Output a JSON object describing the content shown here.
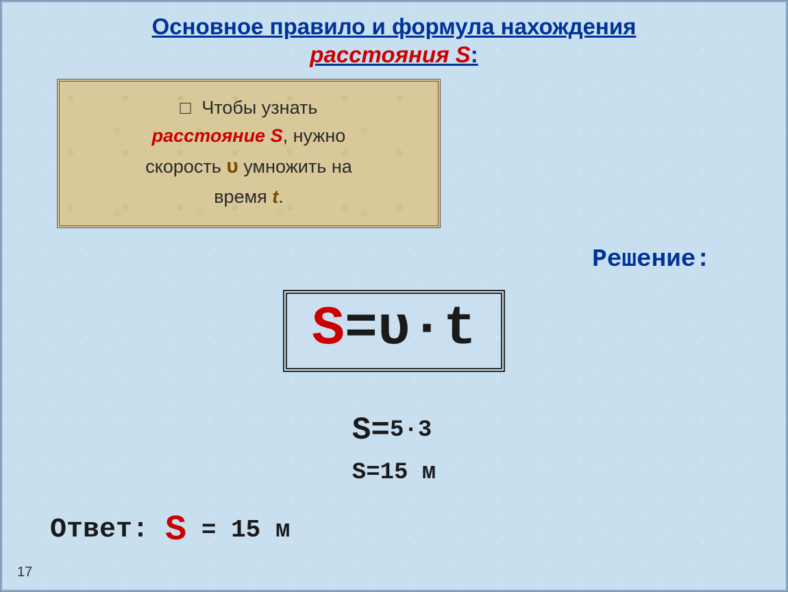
{
  "title": {
    "line1": "Основное правило и формула нахождения",
    "accent": "расстояния S",
    "colon": ":"
  },
  "rule": {
    "bullet": "□",
    "part1": "Чтобы узнать",
    "emph": "расстояние S",
    "part2": ", нужно",
    "part3": "скорость",
    "sym_v": "υ",
    "part4": "умножить на",
    "part5": "время",
    "sym_t": "t",
    "dot": "."
  },
  "solution_label": "Решение:",
  "formula": {
    "S": "S",
    "rest": "=υ·t"
  },
  "calc": {
    "line1_S": "S=",
    "line1_rest": "5·3",
    "line2": "S=15 м"
  },
  "answer": {
    "label": "Ответ:",
    "S": "S",
    "rest": " = 15 м"
  },
  "page_number": "17",
  "colors": {
    "title_blue": "#003399",
    "accent_red": "#cc0000",
    "rule_bg": "#d8c89a",
    "rule_border": "#6b5a3a",
    "sym_brown": "#7a4a00",
    "page_bg": "#c8dff0"
  }
}
